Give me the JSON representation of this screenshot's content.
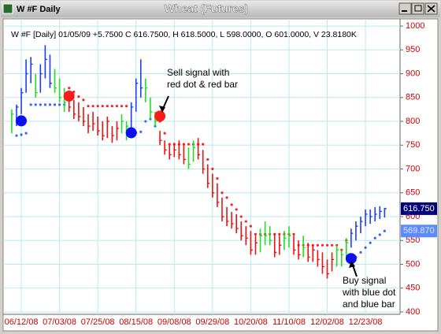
{
  "window_title": "W #F Daily",
  "chart_data": {
    "type": "ohlc",
    "title": "Wheat (Futures)",
    "info": "W #F [Daily] 01/05/09 +5.7500 C 616.7500, H 618.5000, L 598.0000, O 601.0000, V 23.8180K",
    "x": [
      "06/06/08",
      "06/10/08",
      "06/12/08",
      "06/16/08",
      "06/18/08",
      "06/20/08",
      "06/24/08",
      "06/26/08",
      "06/30/08",
      "07/01/08",
      "07/03/08",
      "07/08/08",
      "07/10/08",
      "07/14/08",
      "07/16/08",
      "07/18/08",
      "07/21/08",
      "07/23/08",
      "07/25/08",
      "07/29/08",
      "07/31/08",
      "08/04/08",
      "08/06/08",
      "08/08/08",
      "08/11/08",
      "08/13/08",
      "08/15/08",
      "08/19/08",
      "08/21/08",
      "08/25/08",
      "08/27/08",
      "08/29/08",
      "09/02/08",
      "09/04/08",
      "09/08/08",
      "09/10/08",
      "09/12/08",
      "09/16/08",
      "09/18/08",
      "09/22/08",
      "09/24/08",
      "09/26/08",
      "09/29/08",
      "10/01/08",
      "10/03/08",
      "10/07/08",
      "10/09/08",
      "10/13/08",
      "10/15/08",
      "10/17/08",
      "10/20/08",
      "10/22/08",
      "10/24/08",
      "10/28/08",
      "10/30/08",
      "11/03/08",
      "11/05/08",
      "11/07/08",
      "11/10/08",
      "11/12/08",
      "11/14/08",
      "11/18/08",
      "11/20/08",
      "11/24/08",
      "11/26/08",
      "11/28/08",
      "12/02/08",
      "12/04/08",
      "12/08/08",
      "12/10/08",
      "12/12/08",
      "12/16/08",
      "12/18/08",
      "12/19/08",
      "12/23/08",
      "12/26/08",
      "12/30/08",
      "01/02/09",
      "01/05/09"
    ],
    "high": [
      825,
      835,
      870,
      930,
      935,
      900,
      920,
      960,
      940,
      910,
      890,
      870,
      860,
      845,
      840,
      830,
      815,
      820,
      810,
      800,
      810,
      790,
      800,
      815,
      800,
      840,
      890,
      930,
      890,
      850,
      820,
      780,
      760,
      750,
      755,
      760,
      750,
      745,
      760,
      765,
      740,
      710,
      690,
      670,
      640,
      620,
      610,
      605,
      590,
      580,
      570,
      560,
      575,
      590,
      580,
      565,
      560,
      570,
      580,
      560,
      550,
      560,
      545,
      540,
      530,
      525,
      510,
      525,
      540,
      530,
      555,
      575,
      590,
      600,
      615,
      615,
      620,
      622,
      618.5
    ],
    "low": [
      775,
      790,
      815,
      860,
      880,
      850,
      860,
      890,
      870,
      860,
      840,
      820,
      820,
      805,
      800,
      790,
      775,
      780,
      770,
      760,
      765,
      755,
      760,
      775,
      760,
      780,
      820,
      850,
      840,
      805,
      790,
      750,
      730,
      720,
      725,
      720,
      710,
      700,
      715,
      720,
      690,
      660,
      640,
      620,
      590,
      580,
      575,
      565,
      550,
      540,
      520,
      520,
      525,
      540,
      540,
      515,
      520,
      530,
      535,
      520,
      510,
      515,
      505,
      505,
      495,
      480,
      470,
      485,
      495,
      495,
      515,
      535,
      550,
      565,
      580,
      585,
      590,
      595,
      598
    ],
    "close": [
      815,
      830,
      860,
      900,
      920,
      860,
      900,
      930,
      880,
      870,
      850,
      840,
      830,
      815,
      810,
      800,
      790,
      795,
      780,
      770,
      800,
      770,
      785,
      800,
      790,
      830,
      880,
      870,
      870,
      820,
      800,
      760,
      740,
      730,
      740,
      730,
      720,
      710,
      745,
      730,
      700,
      670,
      650,
      630,
      600,
      590,
      585,
      575,
      560,
      555,
      530,
      545,
      560,
      560,
      550,
      525,
      540,
      555,
      560,
      530,
      520,
      535,
      515,
      530,
      510,
      495,
      480,
      510,
      530,
      520,
      545,
      565,
      580,
      590,
      605,
      600,
      605,
      611,
      616.75
    ],
    "colors": [
      "#22dd22",
      "#1a3cff",
      "#1a3cff",
      "#1a3cff",
      "#1a3cff",
      "#22dd22",
      "#1a3cff",
      "#1a3cff",
      "#1a3cff",
      "#22dd22",
      "#22dd22",
      "#22dd22",
      "#ee1111",
      "#ee1111",
      "#ee1111",
      "#ee1111",
      "#ee1111",
      "#ee1111",
      "#ee1111",
      "#ee1111",
      "#ee1111",
      "#ee1111",
      "#ee1111",
      "#22dd22",
      "#22dd22",
      "#1a3cff",
      "#1a3cff",
      "#1a3cff",
      "#22dd22",
      "#22dd22",
      "#22dd22",
      "#ee1111",
      "#ee1111",
      "#ee1111",
      "#ee1111",
      "#ee1111",
      "#ee1111",
      "#22dd22",
      "#22dd22",
      "#ee1111",
      "#ee1111",
      "#ee1111",
      "#ee1111",
      "#ee1111",
      "#ee1111",
      "#ee1111",
      "#ee1111",
      "#ee1111",
      "#ee1111",
      "#ee1111",
      "#ee1111",
      "#ee1111",
      "#22dd22",
      "#22dd22",
      "#22dd22",
      "#ee1111",
      "#ee1111",
      "#22dd22",
      "#22dd22",
      "#ee1111",
      "#ee1111",
      "#22dd22",
      "#ee1111",
      "#ee1111",
      "#ee1111",
      "#ee1111",
      "#ee1111",
      "#ee1111",
      "#22dd22",
      "#22dd22",
      "#22dd22",
      "#1a3cff",
      "#1a3cff",
      "#1a3cff",
      "#1a3cff",
      "#1a3cff",
      "#1a3cff",
      "#1a3cff",
      "#1a3cff"
    ],
    "stops": [
      null,
      770,
      772,
      775,
      835,
      835,
      835,
      835,
      835,
      835,
      835,
      835,
      870,
      862,
      852,
      845,
      832,
      832,
      832,
      832,
      832,
      832,
      832,
      832,
      832,
      776,
      776,
      778,
      800,
      805,
      790,
      800,
      775,
      752,
      752,
      752,
      752,
      752,
      752,
      752,
      752,
      720,
      700,
      680,
      650,
      640,
      625,
      615,
      600,
      590,
      580,
      563,
      563,
      563,
      563,
      563,
      563,
      563,
      563,
      563,
      540,
      540,
      540,
      540,
      540,
      540,
      540,
      540,
      540,
      530,
      550,
      505,
      515,
      525,
      535,
      545,
      555,
      562,
      569.87
    ],
    "stop_colors": {
      "above": "#ff2020",
      "below": "#3366ff"
    },
    "signals": [
      {
        "x": "06/12/08",
        "value": 801,
        "color": "#0a10f0"
      },
      {
        "x": "07/10/08",
        "value": 853,
        "color": "#ff1a1a"
      },
      {
        "x": "08/13/08",
        "value": 776,
        "color": "#0a10f0"
      },
      {
        "x": "08/29/08",
        "value": 811,
        "color": "#ff1a1a"
      },
      {
        "x": "12/16/08",
        "value": 512,
        "color": "#0a10f0"
      }
    ],
    "last_close": {
      "value": 616.75,
      "label": "616.750",
      "color": "#00007a"
    },
    "last_stop": {
      "value": 569.87,
      "label": "569.870",
      "color": "#5a8cff"
    },
    "annotations": [
      {
        "lines": [
          "Sell signal with",
          "red dot & red bar"
        ]
      },
      {
        "lines": [
          "Buy signal",
          "with blue dot",
          "and blue bar"
        ]
      }
    ],
    "ylim": [
      395,
      1015
    ],
    "yticks": [
      400,
      450,
      500,
      550,
      600,
      650,
      700,
      750,
      800,
      850,
      900,
      950,
      1000
    ],
    "xticks": [
      "06/12/08",
      "07/03/08",
      "07/25/08",
      "08/15/08",
      "09/08/08",
      "09/29/08",
      "10/20/08",
      "11/10/08",
      "12/02/08",
      "12/23/08"
    ],
    "grid": true
  }
}
